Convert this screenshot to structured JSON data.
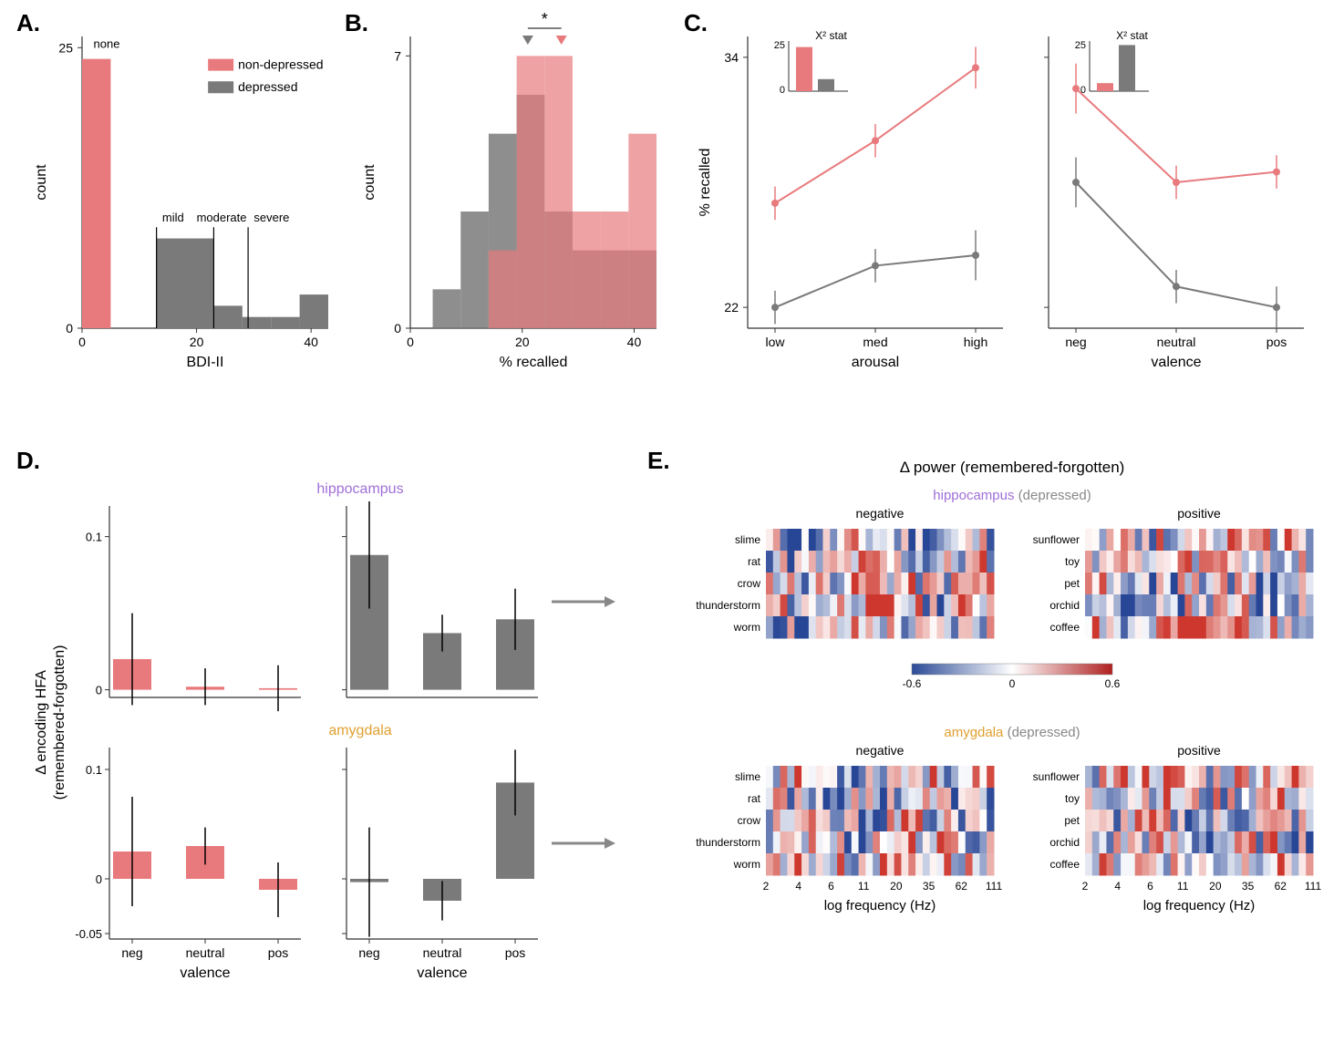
{
  "colors": {
    "nondep": "#e87a7d",
    "dep": "#7a7a7a",
    "dep_light": "#8c8c8c",
    "overlap": "#a85454",
    "hippocampus": "#a070d8",
    "amygdala": "#e0a030",
    "axis": "#333333",
    "arrow": "#888888"
  },
  "panelA": {
    "label": "A.",
    "y_label": "count",
    "x_label": "BDI-II",
    "x_ticks": [
      0,
      20,
      40
    ],
    "y_ticks": [
      0,
      25
    ],
    "annotations": [
      "none",
      "mild",
      "moderate",
      "severe"
    ],
    "legend": [
      "non-depressed",
      "depressed"
    ],
    "nondep_bars": [
      {
        "x": 0,
        "w": 5,
        "h": 24
      }
    ],
    "dep_bars": [
      {
        "x": 13,
        "w": 5,
        "h": 8
      },
      {
        "x": 18,
        "w": 5,
        "h": 8
      },
      {
        "x": 23,
        "w": 5,
        "h": 2
      },
      {
        "x": 28,
        "w": 5,
        "h": 1
      },
      {
        "x": 33,
        "w": 5,
        "h": 1
      },
      {
        "x": 38,
        "w": 5,
        "h": 3
      }
    ],
    "vlines": [
      13,
      23,
      29
    ]
  },
  "panelB": {
    "label": "B.",
    "y_label": "count",
    "x_label": "% recalled",
    "x_ticks": [
      0,
      20,
      40
    ],
    "y_ticks": [
      0,
      7
    ],
    "sig": "*",
    "nondep_bars": [
      {
        "x": 14,
        "w": 5,
        "h": 2
      },
      {
        "x": 19,
        "w": 5,
        "h": 7
      },
      {
        "x": 24,
        "w": 5,
        "h": 7
      },
      {
        "x": 29,
        "w": 5,
        "h": 3
      },
      {
        "x": 34,
        "w": 5,
        "h": 3
      },
      {
        "x": 39,
        "w": 5,
        "h": 5
      }
    ],
    "dep_bars": [
      {
        "x": 4,
        "w": 5,
        "h": 1
      },
      {
        "x": 9,
        "w": 5,
        "h": 3
      },
      {
        "x": 14,
        "w": 5,
        "h": 5
      },
      {
        "x": 19,
        "w": 5,
        "h": 6
      },
      {
        "x": 24,
        "w": 5,
        "h": 3
      },
      {
        "x": 29,
        "w": 5,
        "h": 2
      },
      {
        "x": 34,
        "w": 5,
        "h": 2
      },
      {
        "x": 39,
        "w": 5,
        "h": 2
      }
    ],
    "arrow_nondep": 27,
    "arrow_dep": 21
  },
  "panelC": {
    "label": "C.",
    "y_label": "% recalled",
    "y_ticks": [
      22,
      34
    ],
    "inset_label": "X² stat",
    "inset_y": [
      0,
      25
    ],
    "arousal": {
      "x_label": "arousal",
      "cats": [
        "low",
        "med",
        "high"
      ],
      "nondep": [
        27,
        30,
        33.5
      ],
      "nondep_err": [
        0.8,
        0.8,
        1.0
      ],
      "dep": [
        22,
        24,
        24.5
      ],
      "dep_err": [
        0.8,
        0.8,
        1.2
      ],
      "inset": {
        "nondep": 22,
        "dep": 6
      }
    },
    "valence": {
      "x_label": "valence",
      "cats": [
        "neg",
        "neutral",
        "pos"
      ],
      "nondep": [
        32.5,
        28,
        28.5
      ],
      "nondep_err": [
        1.2,
        0.8,
        0.8
      ],
      "dep": [
        28,
        23,
        22
      ],
      "dep_err": [
        1.2,
        0.8,
        1.0
      ],
      "inset": {
        "nondep": 4,
        "dep": 23
      }
    }
  },
  "panelD": {
    "label": "D.",
    "y_label": "Δ encoding HFA\n(remembered-forgotten)",
    "x_label": "valence",
    "cats": [
      "neg",
      "neutral",
      "pos"
    ],
    "hippocampus": {
      "title": "hippocampus",
      "color": "#a070d8",
      "nondep": {
        "vals": [
          0.02,
          0.002,
          0.001
        ],
        "err": [
          0.03,
          0.012,
          0.015
        ],
        "yticks": [
          0,
          0.1
        ]
      },
      "dep": {
        "vals": [
          0.088,
          0.037,
          0.046
        ],
        "err": [
          0.035,
          0.012,
          0.02
        ],
        "yticks": [
          0,
          0.1
        ]
      }
    },
    "amygdala": {
      "title": "amygdala",
      "color": "#e0a030",
      "nondep": {
        "vals": [
          0.025,
          0.03,
          -0.01
        ],
        "err": [
          0.05,
          0.017,
          0.025
        ],
        "yticks": [
          -0.05,
          0,
          0.1
        ]
      },
      "dep": {
        "vals": [
          -0.003,
          -0.02,
          0.088
        ],
        "err": [
          0.05,
          0.018,
          0.03
        ],
        "yticks": [
          -0.05,
          0,
          0.1
        ]
      }
    }
  },
  "panelE": {
    "label": "E.",
    "title": "Δ power (remembered-forgotten)",
    "freq_label": "log frequency (Hz)",
    "freq_ticks": [
      "2",
      "4",
      "6",
      "11",
      "20",
      "35",
      "62",
      "111"
    ],
    "neg_words": [
      "slime",
      "rat",
      "crow",
      "thunderstorm",
      "worm"
    ],
    "pos_words": [
      "sunflower",
      "toy",
      "pet",
      "orchid",
      "coffee"
    ],
    "col_titles": [
      "negative",
      "positive"
    ],
    "cbar": {
      "min": -0.6,
      "mid": 0,
      "max": 0.6
    },
    "regions": [
      {
        "name": "hippocampus",
        "color": "#a070d8",
        "group": "(depressed)"
      },
      {
        "name": "amygdala",
        "color": "#e0a030",
        "group": "(depressed)"
      }
    ]
  }
}
